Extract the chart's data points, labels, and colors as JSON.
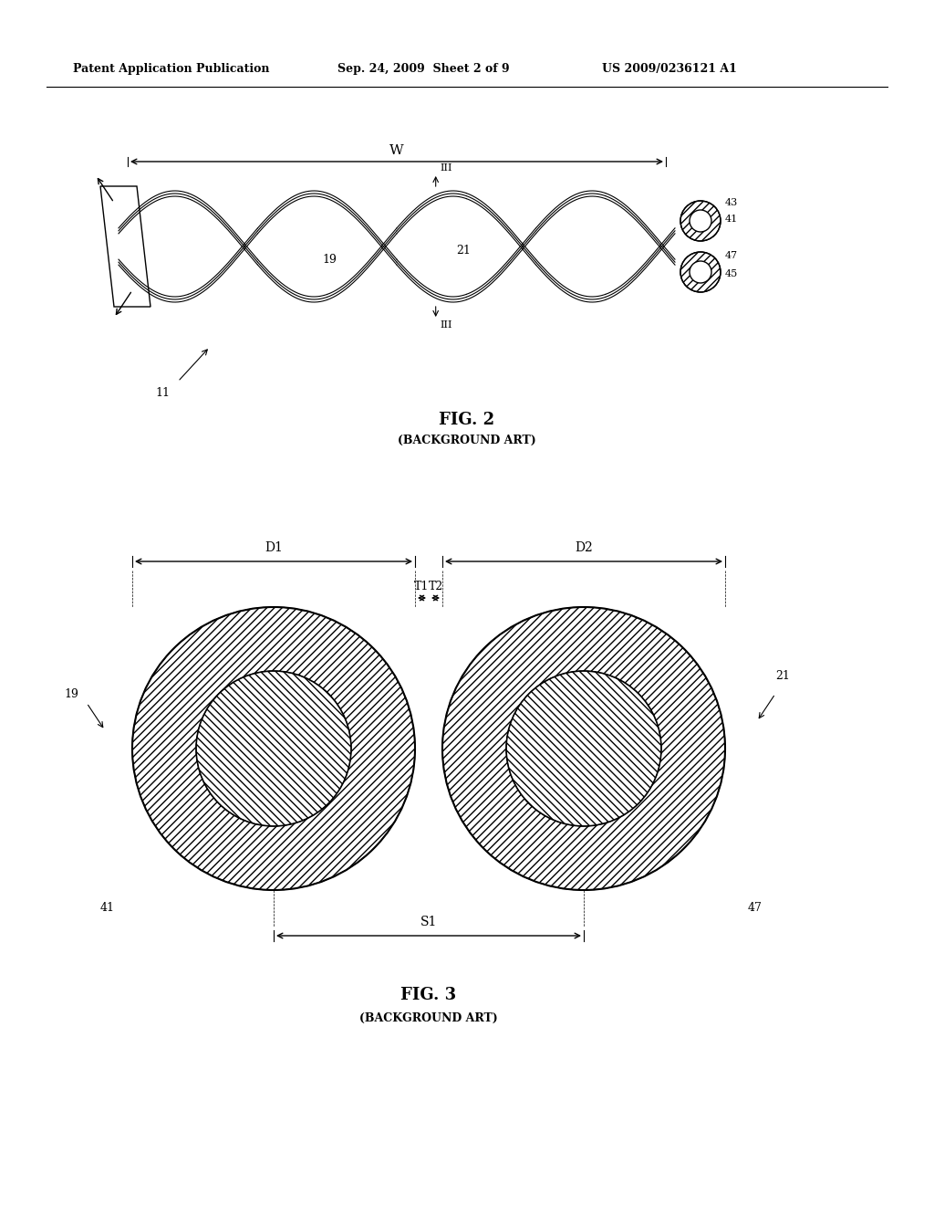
{
  "header_left": "Patent Application Publication",
  "header_mid": "Sep. 24, 2009  Sheet 2 of 9",
  "header_right": "US 2009/0236121 A1",
  "fig2_title": "FIG. 2",
  "fig2_subtitle": "(BACKGROUND ART)",
  "fig3_title": "FIG. 3",
  "fig3_subtitle": "(BACKGROUND ART)",
  "bg_color": "#ffffff",
  "line_color": "#000000"
}
